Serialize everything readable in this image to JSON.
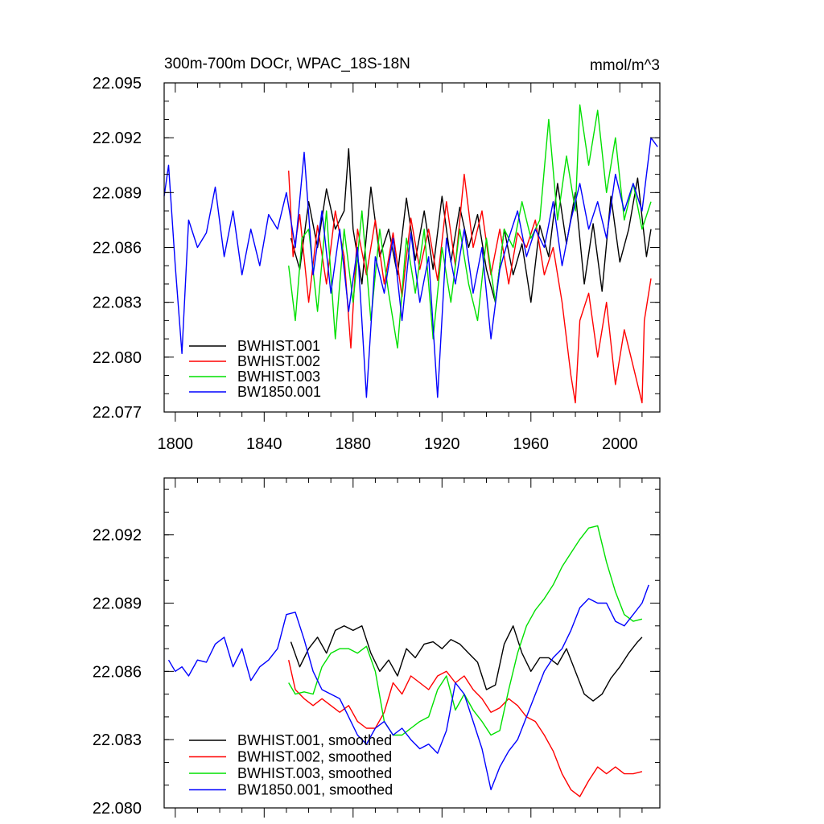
{
  "chart_data": [
    {
      "type": "line",
      "title": "300m-700m DOCr, WPAC_18S-18N",
      "units": "mmol/m^3",
      "xlabel": "",
      "ylabel": "",
      "xlim": [
        1795,
        2018
      ],
      "ylim": [
        22.077,
        22.095
      ],
      "xticks": [
        1800,
        1840,
        1880,
        1920,
        1960,
        2000
      ],
      "xtick_labels": [
        "1800",
        "1840",
        "1880",
        "1920",
        "1960",
        "2000"
      ],
      "yticks": [
        22.077,
        22.08,
        22.083,
        22.086,
        22.089,
        22.092,
        22.095
      ],
      "ytick_labels": [
        "22.077",
        "22.080",
        "22.083",
        "22.086",
        "22.089",
        "22.092",
        "22.095"
      ],
      "legend_position": "bottom-left",
      "series": [
        {
          "name": "BWHIST.001",
          "color": "#000000",
          "x": [
            1852,
            1856,
            1860,
            1864,
            1868,
            1872,
            1876,
            1878,
            1880,
            1884,
            1888,
            1892,
            1896,
            1900,
            1904,
            1908,
            1912,
            1916,
            1920,
            1924,
            1928,
            1932,
            1936,
            1940,
            1944,
            1948,
            1952,
            1956,
            1960,
            1964,
            1968,
            1972,
            1976,
            1980,
            1984,
            1988,
            1992,
            1996,
            2000,
            2004,
            2008,
            2012,
            2014
          ],
          "values": [
            22.0865,
            22.0848,
            22.0885,
            22.086,
            22.0892,
            22.087,
            22.088,
            22.0914,
            22.087,
            22.084,
            22.0893,
            22.0855,
            22.087,
            22.0845,
            22.0887,
            22.0853,
            22.088,
            22.0848,
            22.0888,
            22.0852,
            22.0882,
            22.086,
            22.0878,
            22.0848,
            22.083,
            22.087,
            22.0845,
            22.0862,
            22.083,
            22.0872,
            22.0855,
            22.0895,
            22.0862,
            22.089,
            22.084,
            22.0873,
            22.0836,
            22.0888,
            22.0852,
            22.087,
            22.0898,
            22.0855,
            22.087
          ]
        },
        {
          "name": "BWHIST.002",
          "color": "#ff0000",
          "x": [
            1851,
            1853,
            1856,
            1860,
            1864,
            1868,
            1872,
            1876,
            1879,
            1882,
            1886,
            1890,
            1894,
            1898,
            1902,
            1906,
            1910,
            1914,
            1918,
            1922,
            1926,
            1930,
            1934,
            1938,
            1942,
            1946,
            1950,
            1954,
            1958,
            1962,
            1966,
            1970,
            1974,
            1978,
            1980,
            1982,
            1986,
            1990,
            1994,
            1998,
            2002,
            2006,
            2010,
            2011,
            2014
          ],
          "values": [
            22.0902,
            22.0855,
            22.0878,
            22.083,
            22.0872,
            22.084,
            22.088,
            22.0855,
            22.0805,
            22.087,
            22.0845,
            22.0875,
            22.084,
            22.0868,
            22.0833,
            22.0876,
            22.0848,
            22.087,
            22.0842,
            22.0885,
            22.085,
            22.09,
            22.086,
            22.088,
            22.0845,
            22.087,
            22.084,
            22.0868,
            22.086,
            22.0875,
            22.0845,
            22.086,
            22.083,
            22.079,
            22.0775,
            22.082,
            22.0835,
            22.08,
            22.083,
            22.0785,
            22.0815,
            22.0795,
            22.0775,
            22.082,
            22.0843
          ]
        },
        {
          "name": "BWHIST.003",
          "color": "#00e000",
          "x": [
            1851,
            1854,
            1857,
            1860,
            1864,
            1868,
            1872,
            1876,
            1880,
            1884,
            1888,
            1892,
            1896,
            1900,
            1904,
            1908,
            1912,
            1916,
            1920,
            1924,
            1928,
            1932,
            1936,
            1940,
            1944,
            1948,
            1952,
            1956,
            1960,
            1964,
            1968,
            1972,
            1976,
            1980,
            1982,
            1986,
            1990,
            1994,
            1998,
            2002,
            2006,
            2010,
            2014
          ],
          "values": [
            22.085,
            22.082,
            22.0865,
            22.087,
            22.0825,
            22.088,
            22.081,
            22.087,
            22.083,
            22.088,
            22.082,
            22.087,
            22.0835,
            22.0805,
            22.0865,
            22.0835,
            22.087,
            22.081,
            22.086,
            22.083,
            22.087,
            22.084,
            22.082,
            22.0865,
            22.083,
            22.087,
            22.086,
            22.0885,
            22.0865,
            22.0875,
            22.093,
            22.0875,
            22.091,
            22.088,
            22.0938,
            22.0905,
            22.0935,
            22.089,
            22.092,
            22.0875,
            22.0895,
            22.087,
            22.0885
          ]
        },
        {
          "name": "BW1850.001",
          "color": "#0000ff",
          "x": [
            1795,
            1797,
            1800,
            1803,
            1806,
            1810,
            1814,
            1818,
            1822,
            1826,
            1830,
            1834,
            1838,
            1842,
            1846,
            1850,
            1854,
            1858,
            1862,
            1866,
            1870,
            1874,
            1878,
            1882,
            1886,
            1890,
            1894,
            1898,
            1902,
            1906,
            1910,
            1914,
            1918,
            1922,
            1926,
            1930,
            1934,
            1938,
            1942,
            1946,
            1950,
            1954,
            1958,
            1962,
            1966,
            1970,
            1974,
            1978,
            1982,
            1986,
            1990,
            1994,
            1998,
            2002,
            2006,
            2010,
            2014,
            2017
          ],
          "values": [
            22.0888,
            22.0905,
            22.085,
            22.0802,
            22.0875,
            22.086,
            22.0868,
            22.0893,
            22.0855,
            22.088,
            22.0845,
            22.087,
            22.085,
            22.0878,
            22.087,
            22.089,
            22.086,
            22.0912,
            22.0845,
            22.088,
            22.0835,
            22.087,
            22.0825,
            22.086,
            22.0778,
            22.0855,
            22.0835,
            22.0865,
            22.082,
            22.0868,
            22.083,
            22.0855,
            22.0778,
            22.0865,
            22.084,
            22.087,
            22.0835,
            22.086,
            22.081,
            22.0848,
            22.0865,
            22.088,
            22.0855,
            22.087,
            22.086,
            22.0885,
            22.085,
            22.0875,
            22.0895,
            22.087,
            22.0885,
            22.0865,
            22.09,
            22.088,
            22.0895,
            22.088,
            22.092,
            22.0915
          ]
        }
      ]
    },
    {
      "type": "line",
      "title": "",
      "xlabel": "",
      "ylabel": "",
      "xlim": [
        1795,
        2018
      ],
      "ylim": [
        22.08,
        22.0945
      ],
      "xticks": [
        1800,
        1840,
        1880,
        1920,
        1960,
        2000
      ],
      "yticks": [
        22.08,
        22.083,
        22.086,
        22.089,
        22.092
      ],
      "ytick_labels": [
        "22.080",
        "22.083",
        "22.086",
        "22.089",
        "22.092"
      ],
      "legend_position": "bottom-left",
      "series": [
        {
          "name": "BWHIST.001, smoothed",
          "color": "#000000",
          "x": [
            1852,
            1856,
            1860,
            1864,
            1868,
            1872,
            1876,
            1880,
            1884,
            1888,
            1892,
            1896,
            1900,
            1904,
            1908,
            1912,
            1916,
            1920,
            1924,
            1928,
            1932,
            1936,
            1940,
            1944,
            1948,
            1952,
            1956,
            1960,
            1964,
            1968,
            1972,
            1976,
            1980,
            1984,
            1988,
            1992,
            1996,
            2000,
            2004,
            2008,
            2010
          ],
          "values": [
            22.0873,
            22.0862,
            22.087,
            22.0875,
            22.0868,
            22.0878,
            22.088,
            22.0878,
            22.088,
            22.0868,
            22.086,
            22.0865,
            22.0858,
            22.087,
            22.0866,
            22.0872,
            22.0873,
            22.087,
            22.0874,
            22.0872,
            22.0868,
            22.0864,
            22.0852,
            22.0854,
            22.0872,
            22.088,
            22.0868,
            22.086,
            22.0866,
            22.0866,
            22.0863,
            22.087,
            22.086,
            22.085,
            22.0847,
            22.085,
            22.0857,
            22.0862,
            22.0868,
            22.0873,
            22.0875
          ]
        },
        {
          "name": "BWHIST.002, smoothed",
          "color": "#ff0000",
          "x": [
            1851,
            1854,
            1858,
            1862,
            1866,
            1870,
            1874,
            1878,
            1882,
            1886,
            1890,
            1894,
            1898,
            1902,
            1906,
            1910,
            1914,
            1918,
            1922,
            1926,
            1930,
            1934,
            1938,
            1942,
            1946,
            1950,
            1954,
            1958,
            1962,
            1966,
            1970,
            1974,
            1978,
            1982,
            1986,
            1990,
            1994,
            1998,
            2002,
            2006,
            2010
          ],
          "values": [
            22.0865,
            22.0852,
            22.0848,
            22.0845,
            22.0848,
            22.0845,
            22.0842,
            22.0845,
            22.0838,
            22.0835,
            22.0835,
            22.0842,
            22.0855,
            22.085,
            22.0858,
            22.0855,
            22.0852,
            22.0858,
            22.086,
            22.0855,
            22.0858,
            22.0852,
            22.0848,
            22.0842,
            22.0844,
            22.0848,
            22.0845,
            22.084,
            22.0838,
            22.0832,
            22.0825,
            22.0815,
            22.0808,
            22.0805,
            22.0812,
            22.0818,
            22.0815,
            22.0818,
            22.0815,
            22.0815,
            22.0816
          ]
        },
        {
          "name": "BWHIST.003, smoothed",
          "color": "#00e000",
          "x": [
            1851,
            1854,
            1858,
            1862,
            1866,
            1870,
            1874,
            1878,
            1882,
            1886,
            1890,
            1894,
            1898,
            1902,
            1906,
            1910,
            1914,
            1918,
            1922,
            1926,
            1930,
            1934,
            1938,
            1942,
            1946,
            1950,
            1954,
            1958,
            1962,
            1966,
            1970,
            1974,
            1978,
            1982,
            1986,
            1990,
            1994,
            1998,
            2002,
            2006,
            2010
          ],
          "values": [
            22.0855,
            22.085,
            22.0851,
            22.085,
            22.0862,
            22.0868,
            22.087,
            22.087,
            22.0868,
            22.0871,
            22.086,
            22.0838,
            22.0832,
            22.0832,
            22.0835,
            22.0838,
            22.084,
            22.0852,
            22.0858,
            22.0843,
            22.085,
            22.0843,
            22.0838,
            22.0832,
            22.0834,
            22.0852,
            22.0868,
            22.088,
            22.0887,
            22.0892,
            22.0898,
            22.0906,
            22.0912,
            22.0918,
            22.0923,
            22.0924,
            22.0908,
            22.0895,
            22.0885,
            22.0882,
            22.0883
          ]
        },
        {
          "name": "BW1850.001, smoothed",
          "color": "#0000ff",
          "x": [
            1797,
            1800,
            1803,
            1806,
            1810,
            1814,
            1818,
            1822,
            1826,
            1830,
            1834,
            1838,
            1842,
            1846,
            1850,
            1854,
            1858,
            1862,
            1866,
            1870,
            1874,
            1878,
            1882,
            1886,
            1890,
            1894,
            1898,
            1902,
            1906,
            1910,
            1914,
            1918,
            1922,
            1926,
            1930,
            1934,
            1938,
            1942,
            1946,
            1950,
            1954,
            1958,
            1962,
            1966,
            1970,
            1974,
            1978,
            1982,
            1986,
            1990,
            1994,
            1998,
            2002,
            2006,
            2010,
            2013
          ],
          "values": [
            22.0865,
            22.086,
            22.0862,
            22.0858,
            22.0865,
            22.0864,
            22.0872,
            22.0875,
            22.0862,
            22.087,
            22.0856,
            22.0862,
            22.0865,
            22.087,
            22.0885,
            22.0886,
            22.0874,
            22.086,
            22.0852,
            22.085,
            22.0848,
            22.084,
            22.0832,
            22.0828,
            22.0835,
            22.0838,
            22.0832,
            22.0835,
            22.083,
            22.0826,
            22.0828,
            22.0824,
            22.0834,
            22.0855,
            22.085,
            22.0838,
            22.0826,
            22.0808,
            22.0818,
            22.0825,
            22.083,
            22.084,
            22.085,
            22.086,
            22.0866,
            22.087,
            22.0878,
            22.0888,
            22.0892,
            22.089,
            22.089,
            22.0882,
            22.088,
            22.0885,
            22.089,
            22.0898
          ]
        }
      ]
    }
  ]
}
